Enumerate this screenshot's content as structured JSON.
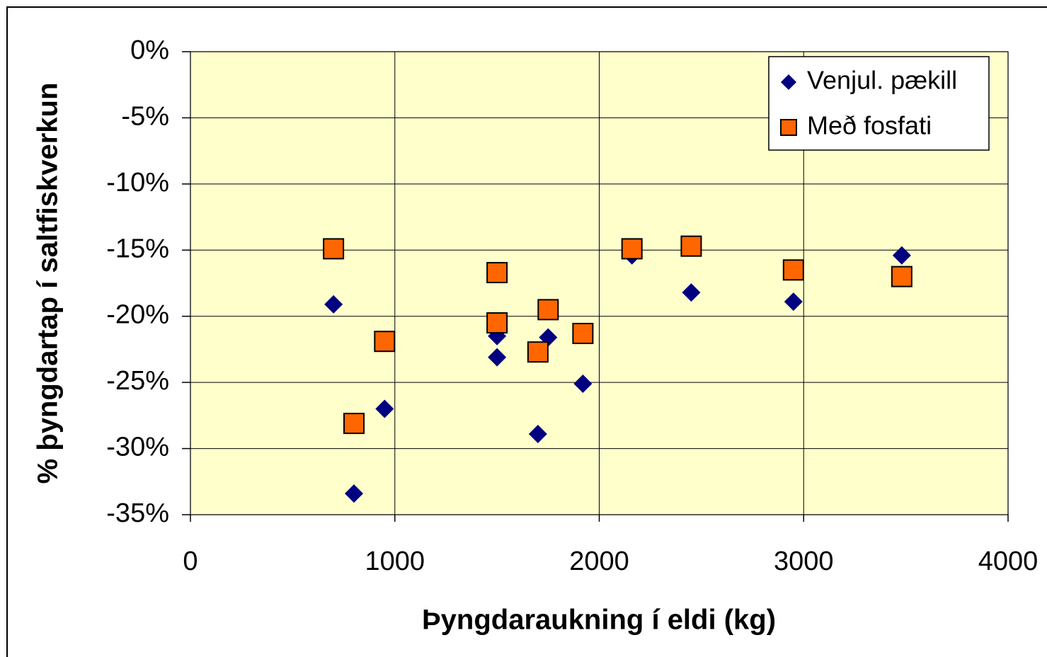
{
  "chart_data": {
    "type": "scatter",
    "x_label": "Þyngdaraukning í eldi (kg)",
    "y_label": "% þyngdartap í saltfiskverkun",
    "xlim": [
      0,
      4000
    ],
    "xticks": [
      0,
      1000,
      2000,
      3000,
      4000
    ],
    "ylim": [
      -35,
      0
    ],
    "yticks": [
      {
        "value": 0,
        "label": "0%"
      },
      {
        "value": -5,
        "label": "-5%"
      },
      {
        "value": -10,
        "label": "-10%"
      },
      {
        "value": -15,
        "label": "-15%"
      },
      {
        "value": -20,
        "label": "-20%"
      },
      {
        "value": -25,
        "label": "-25%"
      },
      {
        "value": -30,
        "label": "-30%"
      },
      {
        "value": -35,
        "label": "-35%"
      }
    ],
    "grid": true,
    "legend": "upper right",
    "series": [
      {
        "name": "Venjul. pækill",
        "color": "#000080",
        "marker": "diamond",
        "x": [
          700,
          800,
          950,
          1500,
          1500,
          1700,
          1750,
          1920,
          2160,
          2450,
          2950,
          3480
        ],
        "values": [
          -19.1,
          -33.4,
          -27.0,
          -21.5,
          -23.1,
          -28.9,
          -21.6,
          -25.1,
          -15.4,
          -18.2,
          -18.9,
          -15.4
        ]
      },
      {
        "name": "Með fosfati",
        "color": "#ff6600",
        "marker": "square",
        "x": [
          700,
          800,
          950,
          1500,
          1500,
          1700,
          1750,
          1920,
          2160,
          2450,
          2950,
          3480
        ],
        "values": [
          -14.9,
          -28.1,
          -21.9,
          -16.7,
          -20.5,
          -22.7,
          -19.5,
          -21.3,
          -14.9,
          -14.7,
          -16.5,
          -17.0
        ]
      }
    ]
  }
}
